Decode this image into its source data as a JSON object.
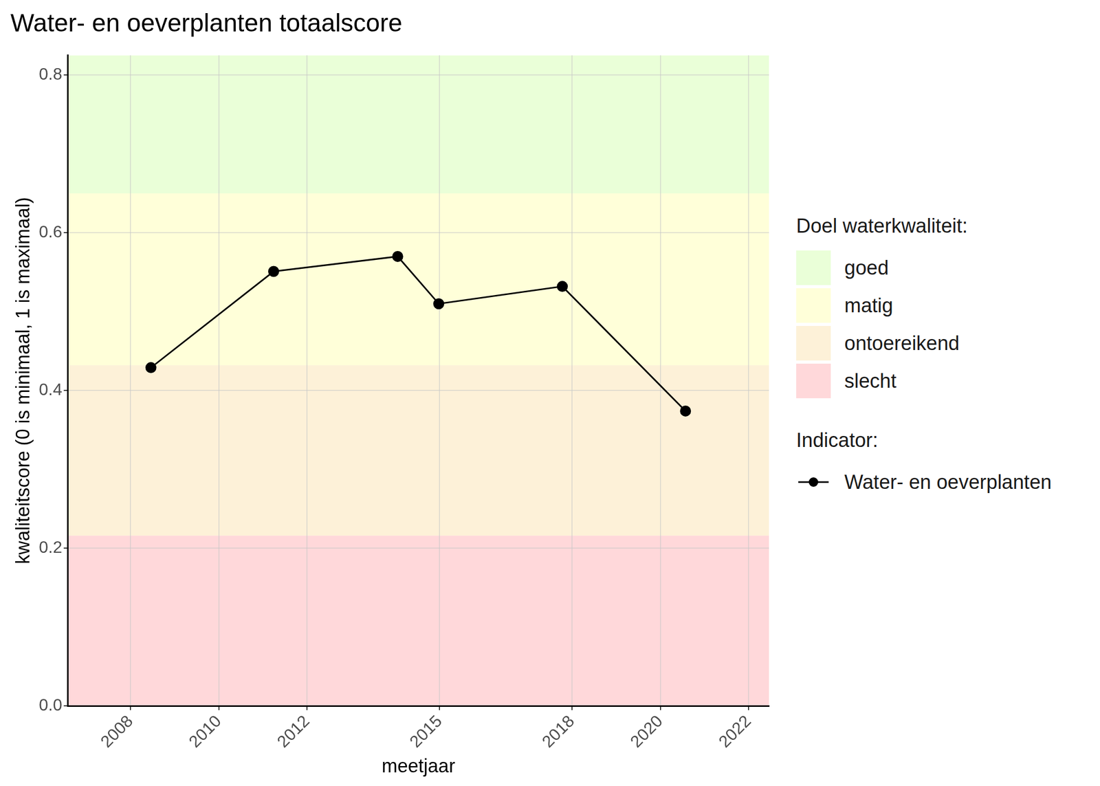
{
  "chart_data": {
    "type": "line",
    "title": "Water- en oeverplanten totaalscore",
    "x_label": "meetjaar",
    "y_label": "kwaliteitscore (0 is minimaal, 1 is maximaal)",
    "x": [
      2008.46,
      2011.24,
      2014.05,
      2014.98,
      2017.78,
      2020.57
    ],
    "series": [
      {
        "name": "Water- en oeverplanten",
        "color": "#000000",
        "values": [
          0.429,
          0.551,
          0.57,
          0.51,
          0.532,
          0.374
        ],
        "marker": "circle",
        "line_style": "solid"
      }
    ],
    "xlim": [
      2006.58,
      2022.46
    ],
    "xticks": [
      2008,
      2010,
      2012,
      2015,
      2018,
      2020,
      2022
    ],
    "ylim": [
      0,
      0.825
    ],
    "yticks": [
      {
        "value": 0,
        "label": "0.0"
      },
      0.2,
      0.4,
      0.6,
      0.8
    ],
    "bands_title": "Doel waterkwaliteit:",
    "bands": [
      {
        "name": "goed",
        "from": 0.65,
        "to": 0.825,
        "color": "#eaffd8"
      },
      {
        "name": "matig",
        "from": 0.432,
        "to": 0.65,
        "color": "#ffffd9"
      },
      {
        "name": "ontoereikend",
        "from": 0.216,
        "to": 0.432,
        "color": "#fdf1d8"
      },
      {
        "name": "slecht",
        "from": 0,
        "to": 0.216,
        "color": "#ffd8da"
      }
    ],
    "series_legend_title": "Indicator:",
    "grid": true,
    "legend": "right"
  }
}
